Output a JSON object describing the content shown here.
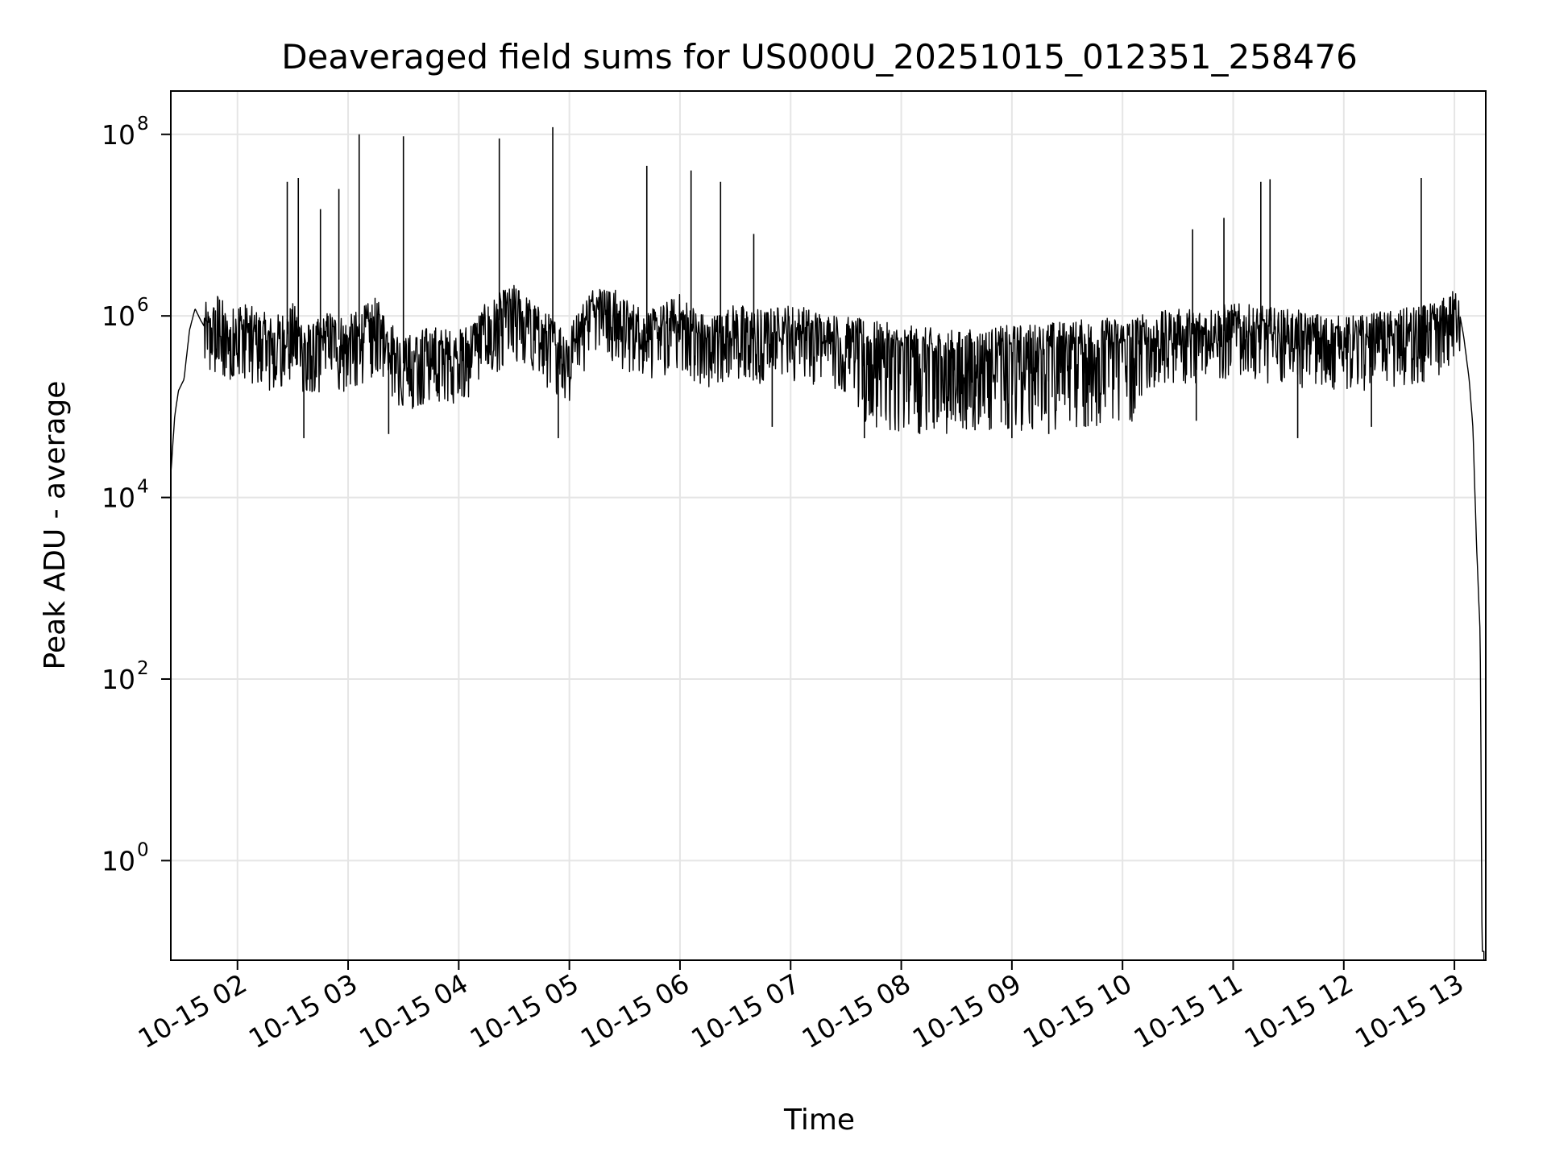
{
  "chart_data": {
    "type": "line",
    "title": "Deaveraged field sums for US000U_20251015_012351_258476",
    "xlabel": "Time",
    "ylabel": "Peak ADU - average",
    "yscale": "log",
    "grid": true,
    "line_color": "#000000",
    "grid_color": "#e5e5e5",
    "x_ticks": [
      "10-15 02",
      "10-15 03",
      "10-15 04",
      "10-15 05",
      "10-15 06",
      "10-15 07",
      "10-15 08",
      "10-15 09",
      "10-15 10",
      "10-15 11",
      "10-15 12",
      "10-15 13"
    ],
    "xlim": [
      "10-15 01:23:51",
      "10-15 13:17"
    ],
    "y_ticks": [
      {
        "base": "10",
        "exp": "0",
        "value": 1
      },
      {
        "base": "10",
        "exp": "2",
        "value": 100
      },
      {
        "base": "10",
        "exp": "4",
        "value": 10000
      },
      {
        "base": "10",
        "exp": "6",
        "value": 1000000
      },
      {
        "base": "10",
        "exp": "8",
        "value": 100000000
      }
    ],
    "ylim": [
      0.08,
      300000000
    ],
    "series": [
      {
        "x": [
          "10-15 01:24",
          "10-15 01:26",
          "10-15 01:28",
          "10-15 01:31",
          "10-15 01:34",
          "10-15 01:37",
          "10-15 01:40",
          "10-15 01:45",
          "10-15 01:50",
          "10-15 01:55",
          "10-15 02:00",
          "10-15 02:10",
          "10-15 02:20",
          "10-15 02:30",
          "10-15 02:40",
          "10-15 02:50",
          "10-15 03:00",
          "10-15 03:15",
          "10-15 03:30",
          "10-15 03:45",
          "10-15 04:00",
          "10-15 04:15",
          "10-15 04:30",
          "10-15 04:45",
          "10-15 05:00",
          "10-15 05:15",
          "10-15 05:30",
          "10-15 05:45",
          "10-15 06:00",
          "10-15 06:15",
          "10-15 06:30",
          "10-15 06:45",
          "10-15 07:00",
          "10-15 07:30",
          "10-15 08:00",
          "10-15 08:30",
          "10-15 09:00",
          "10-15 09:30",
          "10-15 10:00",
          "10-15 10:30",
          "10-15 11:00",
          "10-15 11:30",
          "10-15 12:00",
          "10-15 12:30",
          "10-15 12:50",
          "10-15 13:00",
          "10-15 13:02",
          "10-15 13:05",
          "10-15 13:08",
          "10-15 13:10",
          "10-15 13:12",
          "10-15 13:14",
          "10-15 13:15",
          "10-15 13:16"
        ],
        "values": [
          20000,
          80000,
          150000,
          200000,
          700000,
          1200000,
          900000,
          600000,
          1000000,
          500000,
          800000,
          600000,
          500000,
          700000,
          400000,
          600000,
          500000,
          800000,
          300000,
          400000,
          350000,
          700000,
          1200000,
          600000,
          400000,
          1500000,
          800000,
          600000,
          900000,
          500000,
          700000,
          600000,
          700000,
          500000,
          400000,
          350000,
          400000,
          450000,
          500000,
          600000,
          700000,
          600000,
          500000,
          600000,
          700000,
          1000000,
          1300000,
          600000,
          200000,
          60000,
          3000,
          300,
          0.1,
          0.1
        ]
      }
    ],
    "peaks": {
      "x": [
        "10-15 02:27",
        "10-15 02:33",
        "10-15 02:45",
        "10-15 02:55",
        "10-15 03:06",
        "10-15 03:30",
        "10-15 04:22",
        "10-15 04:51",
        "10-15 05:42",
        "10-15 06:06",
        "10-15 06:22",
        "10-15 06:40",
        "10-15 10:38",
        "10-15 10:55",
        "10-15 11:15",
        "10-15 11:20",
        "10-15 12:42"
      ],
      "values": [
        30000000,
        33000000,
        15000000,
        25000000,
        100000000,
        95000000,
        90000000,
        120000000,
        45000000,
        40000000,
        30000000,
        8000000,
        9000000,
        12000000,
        30000000,
        32000000,
        33000000
      ]
    },
    "dips": {
      "x": [
        "10-15 02:36",
        "10-15 03:22",
        "10-15 04:54",
        "10-15 06:50",
        "10-15 07:40",
        "10-15 08:10",
        "10-15 08:40",
        "10-15 09:00",
        "10-15 09:20",
        "10-15 09:40",
        "10-15 10:40",
        "10-15 11:35",
        "10-15 12:15"
      ],
      "values": [
        45000,
        50000,
        45000,
        60000,
        45000,
        50000,
        55000,
        45000,
        50000,
        60000,
        70000,
        45000,
        60000
      ]
    }
  }
}
